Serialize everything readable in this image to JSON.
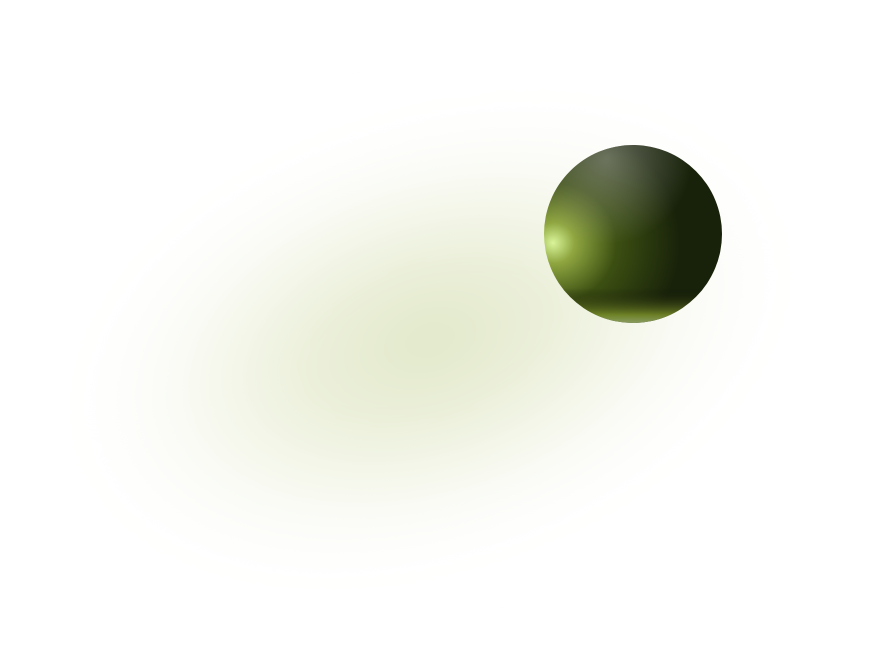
{
  "scene": {
    "background_color": "#ffffff",
    "glow": {
      "description_color_center": "#dfe6c6",
      "description_color_mid": "#eef2de",
      "description_color_edge": "#ffffff"
    },
    "sphere": {
      "highlight_color": "#d9f59a",
      "mid_color": "#556b17",
      "shadow_color": "#18220a",
      "rim_color": "#7a8f2a",
      "bottom_rim_color": "#b5c7a8"
    }
  }
}
